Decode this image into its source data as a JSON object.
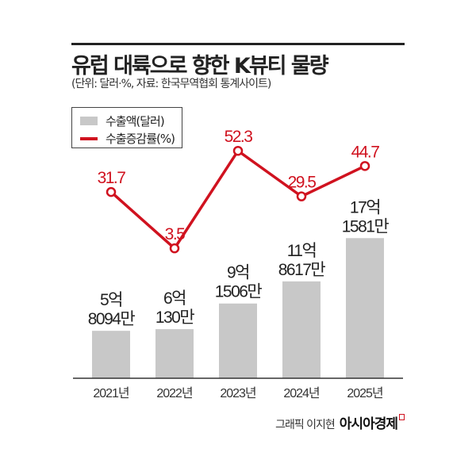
{
  "chart_data": {
    "type": "bar",
    "title": "유럽 대륙으로 향한 K뷰티 물량",
    "subtitle": "(단위: 달러·%, 자료: 한국무역협회 통계사이트)",
    "categories": [
      "2021년",
      "2022년",
      "2023년",
      "2024년",
      "2025년"
    ],
    "series": [
      {
        "name": "수출액(달러)",
        "type": "bar",
        "values": [
          580940000,
          601300000,
          915060000,
          1186170000,
          1715810000
        ],
        "labels": [
          [
            "5억",
            "8094만"
          ],
          [
            "6억",
            "130만"
          ],
          [
            "9억",
            "1506만"
          ],
          [
            "11억",
            "8617만"
          ],
          [
            "17억",
            "1581만"
          ]
        ]
      },
      {
        "name": "수출증감률(%)",
        "type": "line",
        "values": [
          31.7,
          3.5,
          52.3,
          29.5,
          44.7
        ],
        "labels": [
          "31.7",
          "3.5",
          "52.3",
          "29.5",
          "44.7"
        ]
      }
    ],
    "legend": "top-left",
    "grid": false,
    "colors": {
      "bar": "#c8c8c8",
      "line": "#d0121f",
      "text": "#222222"
    }
  },
  "credit": {
    "author": "그래픽 이지현",
    "brand": "아시아경제"
  }
}
